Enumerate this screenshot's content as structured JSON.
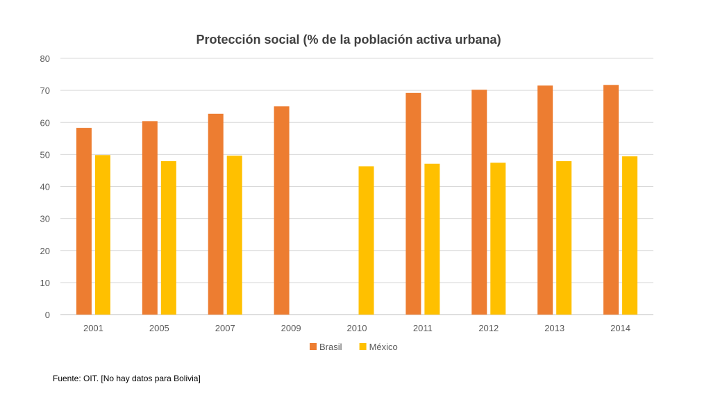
{
  "chart_data": {
    "type": "bar",
    "title": "Protección social (% de la población activa urbana)",
    "categories": [
      "2001",
      "2005",
      "2007",
      "2009",
      "2010",
      "2011",
      "2012",
      "2013",
      "2014"
    ],
    "series": [
      {
        "name": "Brasil",
        "color": "#ED7D31",
        "values": [
          58.3,
          60.4,
          62.7,
          65.0,
          null,
          69.2,
          70.2,
          71.5,
          71.7
        ]
      },
      {
        "name": "México",
        "color": "#FFC000",
        "values": [
          49.8,
          47.9,
          49.6,
          null,
          46.3,
          47.1,
          47.4,
          47.9,
          49.4
        ]
      }
    ],
    "ylim": [
      0,
      80
    ],
    "yticks": [
      0,
      10,
      20,
      30,
      40,
      50,
      60,
      70,
      80
    ],
    "grid": true,
    "legend_position": "bottom",
    "source_note": "Fuente: OIT. [No hay datos para Bolivia]"
  }
}
